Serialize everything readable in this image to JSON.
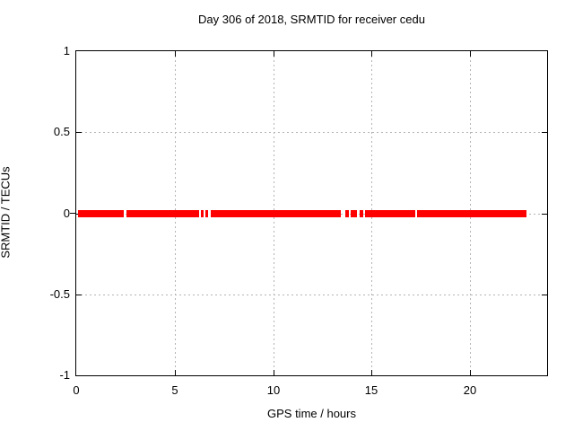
{
  "chart_data": {
    "type": "line",
    "title": "Day 306 of 2018, SRMTID for receiver cedu",
    "xlabel": "GPS time / hours",
    "ylabel": "SRMTID / TECUs",
    "xlim": [
      0,
      23.9
    ],
    "ylim": [
      -1,
      1
    ],
    "xticks": [
      0,
      5,
      10,
      15,
      20
    ],
    "xticklabels": [
      "0",
      "5",
      "10",
      "15",
      "20"
    ],
    "yticks": [
      1,
      0.5,
      0,
      -0.5,
      -1
    ],
    "yticklabels": [
      "1",
      "0.5",
      "0",
      "-0.5",
      "-1"
    ],
    "grid": true,
    "grid_color": "#b4b4b4",
    "border_color": "#000000",
    "legend": "none",
    "series": [
      {
        "name": "SRMTID",
        "color": "#ff0000",
        "y_value": 0,
        "marker_band_px": 8,
        "segments_hours": [
          [
            0.1,
            2.43
          ],
          [
            2.55,
            6.23
          ],
          [
            6.32,
            6.45
          ],
          [
            6.55,
            6.68
          ],
          [
            6.82,
            13.45
          ],
          [
            13.64,
            13.82
          ],
          [
            13.95,
            14.27
          ],
          [
            14.39,
            14.55
          ],
          [
            14.66,
            17.23
          ],
          [
            17.32,
            22.85
          ]
        ]
      }
    ]
  }
}
